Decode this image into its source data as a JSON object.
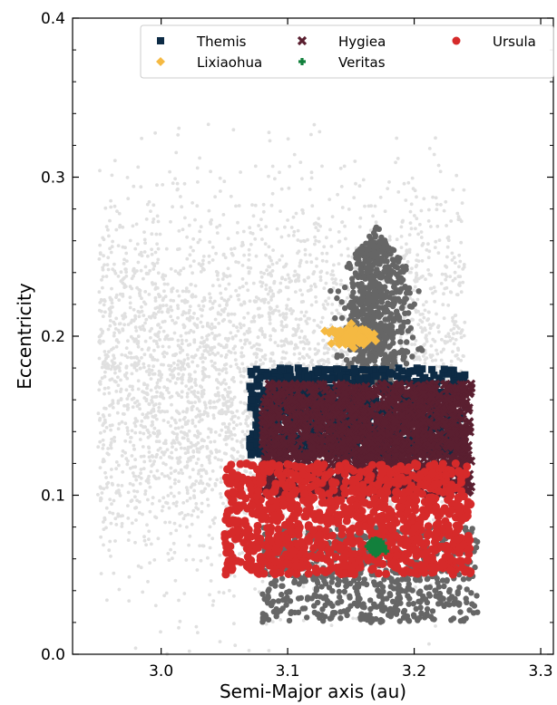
{
  "chart_data": {
    "type": "scatter",
    "title": "",
    "xlabel": "Semi-Major axis (au)",
    "ylabel": "Eccentricity",
    "xlim": [
      2.93,
      3.31
    ],
    "ylim": [
      0.0,
      0.4
    ],
    "x_ticks": [
      3.0,
      3.1,
      3.2,
      3.3
    ],
    "x_tick_labels": [
      "3.0",
      "3.1",
      "3.2",
      "3.3"
    ],
    "y_ticks": [
      0.0,
      0.1,
      0.2,
      0.3,
      0.4
    ],
    "y_tick_labels": [
      "0.0",
      "0.1",
      "0.2",
      "0.3",
      "0.4"
    ],
    "grid": false,
    "legend_position": "top",
    "background_population": {
      "color": "#e0e0e0",
      "a_range": [
        2.95,
        3.24
      ],
      "e_range": [
        0.0,
        0.4
      ]
    },
    "series": [
      {
        "name": "Themis",
        "marker": "square",
        "color": "#0d2b45",
        "region": {
          "a": [
            3.07,
            3.24
          ],
          "e": [
            0.125,
            0.18
          ]
        }
      },
      {
        "name": "Hygiea",
        "marker": "x",
        "color": "#5a1f30",
        "region": {
          "a": [
            3.08,
            3.245
          ],
          "e": [
            0.1,
            0.17
          ]
        }
      },
      {
        "name": "Ursula",
        "marker": "circle",
        "color": "#d62a2a",
        "region": {
          "a": [
            3.05,
            3.245
          ],
          "e": [
            0.05,
            0.12
          ]
        }
      },
      {
        "name": "Lixiaohua",
        "marker": "diamond",
        "color": "#f5b942",
        "region": {
          "a": [
            3.12,
            3.18
          ],
          "e": [
            0.19,
            0.21
          ]
        }
      },
      {
        "name": "Veritas",
        "marker": "plus",
        "color": "#12803c",
        "region": {
          "a": [
            3.16,
            3.18
          ],
          "e": [
            0.06,
            0.075
          ]
        }
      }
    ],
    "outer_family_halo": {
      "color": "#666666",
      "a_range": [
        3.08,
        3.25
      ],
      "e_range": [
        0.02,
        0.27
      ]
    }
  }
}
